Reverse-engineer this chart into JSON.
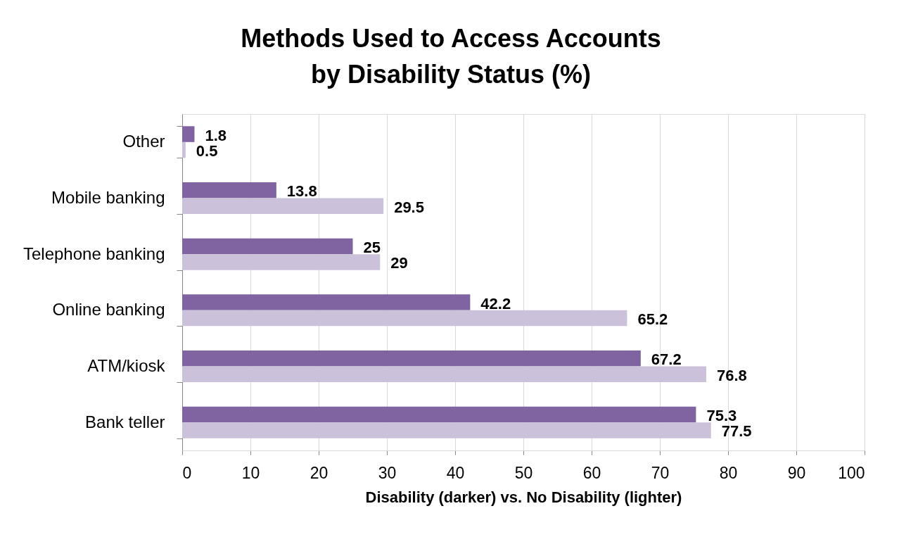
{
  "chart_data": {
    "type": "bar",
    "orientation": "horizontal",
    "title": "Methods Used to Access Accounts\nby Disability Status (%)",
    "xlabel": "Disability (darker) vs. No Disability (lighter)",
    "categories": [
      "Other",
      "Mobile banking",
      "Telephone banking",
      "Online banking",
      "ATM/kiosk",
      "Bank teller"
    ],
    "series": [
      {
        "color": "#8064a2",
        "values": [
          1.8,
          13.8,
          25,
          42.2,
          67.2,
          75.3
        ]
      },
      {
        "color": "#ccc1da",
        "values": [
          0.5,
          29.5,
          29,
          65.2,
          76.8,
          77.5
        ]
      }
    ],
    "xlim": [
      0,
      100
    ],
    "xticks": [
      0,
      10,
      20,
      30,
      40,
      50,
      60,
      70,
      80,
      90,
      100
    ],
    "grid": "x",
    "data_labels": true
  }
}
